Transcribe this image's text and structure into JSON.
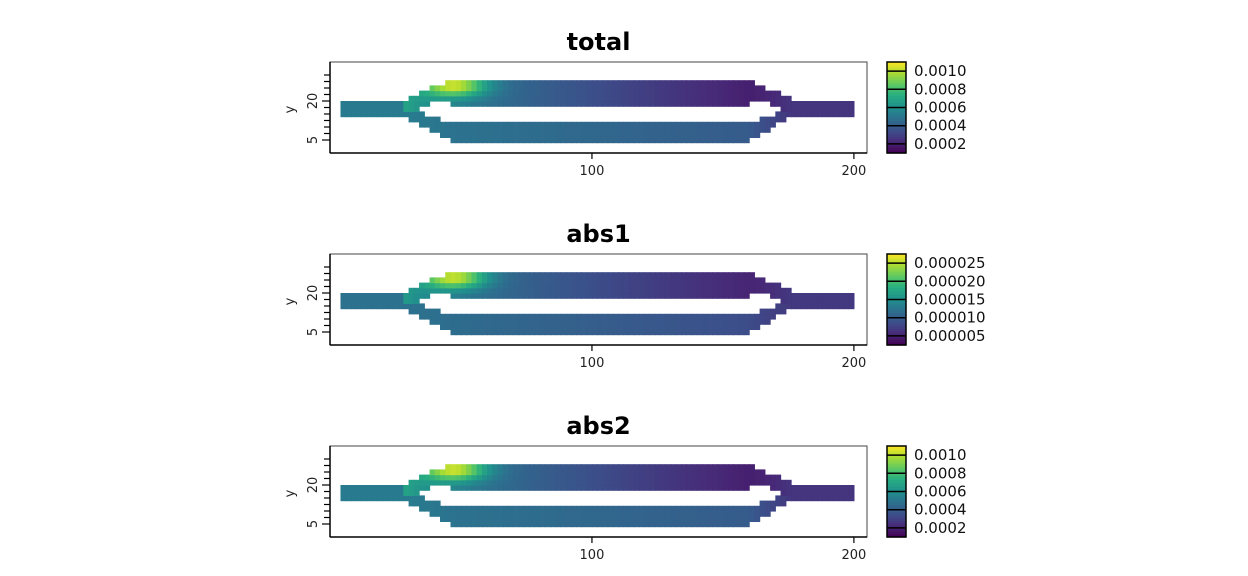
{
  "chart_data": [
    {
      "type": "heatmap",
      "title": "total",
      "xlabel": "",
      "ylabel": "y",
      "x_ticks": [
        "100",
        "200"
      ],
      "y_ticks": [
        "5",
        "20"
      ],
      "colorbar_labels": [
        "0.0010",
        "0.0008",
        "0.0006",
        "0.0004",
        "0.0002"
      ],
      "colorbar_values": [
        0.001,
        0.0008,
        0.0006,
        0.0004,
        0.0002
      ],
      "value_range": [
        0.0001,
        0.0011
      ],
      "xlim": [
        0,
        205
      ],
      "ylim": [
        0,
        35
      ],
      "colormap": "viridis",
      "field": {
        "inlet_value": 0.00052,
        "upper_branch_start": 0.00068,
        "upper_branch_end": 0.00016,
        "lower_branch_start": 0.0005,
        "lower_branch_end": 0.00038,
        "outlet_value": 0.00026,
        "hotspot_value": 0.00105
      }
    },
    {
      "type": "heatmap",
      "title": "abs1",
      "xlabel": "",
      "ylabel": "y",
      "x_ticks": [
        "100",
        "200"
      ],
      "y_ticks": [
        "5",
        "20"
      ],
      "colorbar_labels": [
        "0.000025",
        "0.000020",
        "0.000015",
        "0.000010",
        "0.000005"
      ],
      "colorbar_values": [
        2.5e-05,
        2e-05,
        1.5e-05,
        1e-05,
        5e-06
      ],
      "value_range": [
        2.5e-06,
        2.75e-05
      ],
      "xlim": [
        0,
        205
      ],
      "ylim": [
        0,
        35
      ],
      "colormap": "viridis",
      "field": {
        "inlet_value": 1.2e-05,
        "upper_branch_start": 1.6e-05,
        "upper_branch_end": 4.5e-06,
        "lower_branch_start": 1.2e-05,
        "lower_branch_end": 8e-06,
        "outlet_value": 6.8e-06,
        "hotspot_value": 2.6e-05
      }
    },
    {
      "type": "heatmap",
      "title": "abs2",
      "xlabel": "",
      "ylabel": "y",
      "x_ticks": [
        "100",
        "200"
      ],
      "y_ticks": [
        "5",
        "20"
      ],
      "colorbar_labels": [
        "0.0010",
        "0.0008",
        "0.0006",
        "0.0004",
        "0.0002"
      ],
      "colorbar_values": [
        0.001,
        0.0008,
        0.0006,
        0.0004,
        0.0002
      ],
      "value_range": [
        0.0001,
        0.0011
      ],
      "xlim": [
        0,
        205
      ],
      "ylim": [
        0,
        35
      ],
      "colormap": "viridis",
      "field": {
        "inlet_value": 0.00052,
        "upper_branch_start": 0.00068,
        "upper_branch_end": 0.00016,
        "lower_branch_start": 0.0005,
        "lower_branch_end": 0.00038,
        "outlet_value": 0.00026,
        "hotspot_value": 0.00105
      }
    }
  ]
}
